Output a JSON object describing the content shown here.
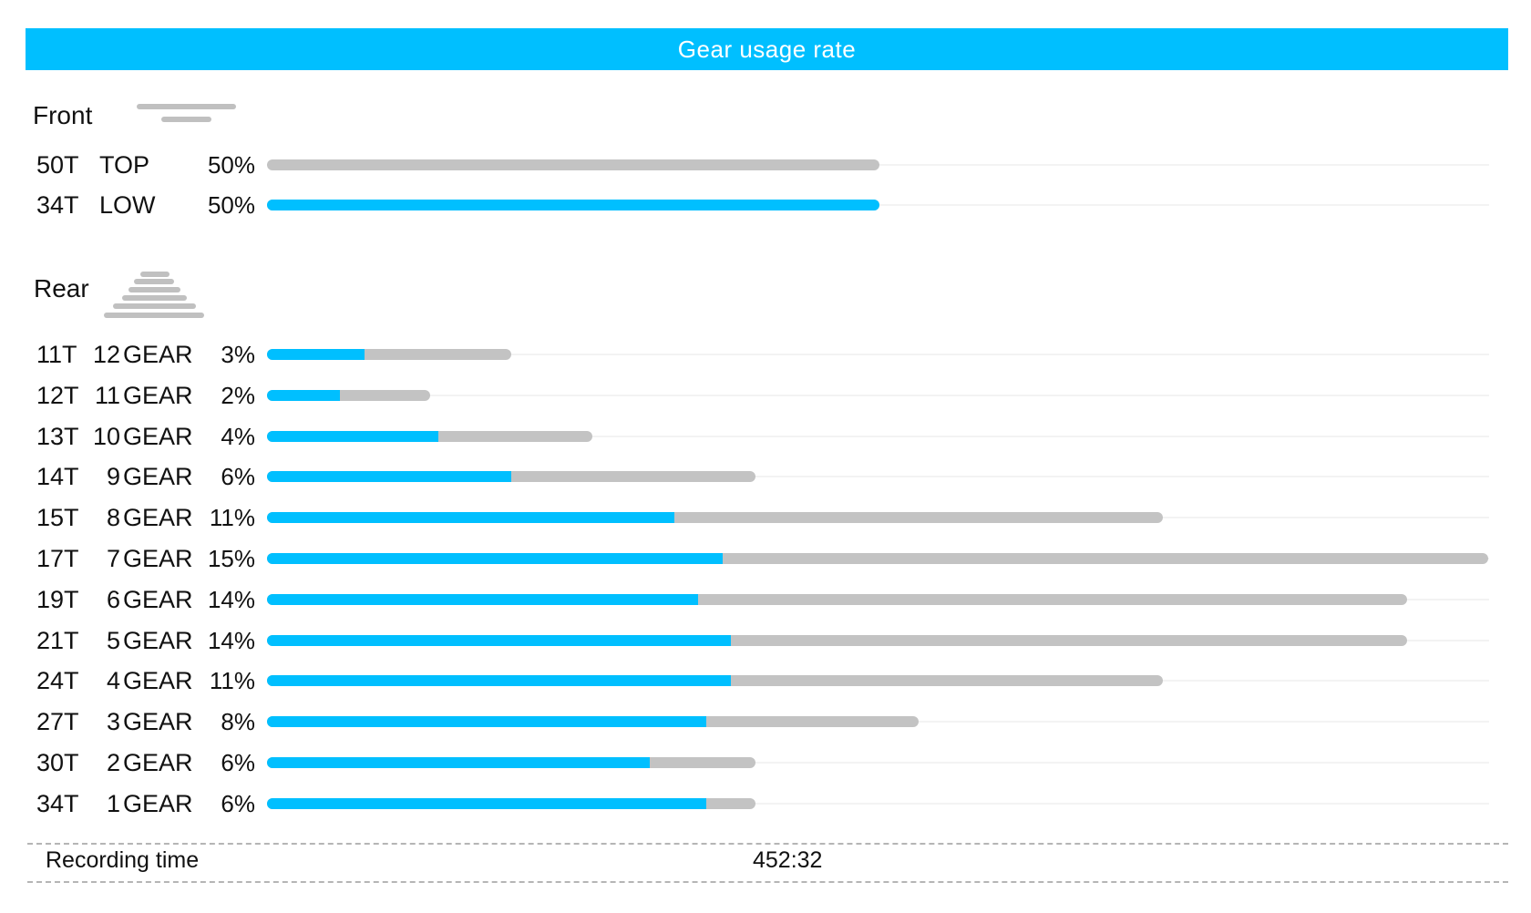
{
  "title": "Gear usage rate",
  "colors": {
    "accent": "#00BFFF",
    "bar_bg": "#C3C3C3",
    "header_text": "#FFFFFF"
  },
  "chart_data": {
    "type": "bar",
    "front": {
      "label": "Front",
      "rows": [
        {
          "teeth": "50T",
          "gear": "TOP",
          "percent": "50%",
          "total": 50,
          "active": 0
        },
        {
          "teeth": "34T",
          "gear": "LOW",
          "percent": "50%",
          "total": 50,
          "active": 50
        }
      ]
    },
    "rear": {
      "label": "Rear",
      "rows": [
        {
          "teeth": "11T",
          "gear_num": "12",
          "gear_word": "GEAR",
          "percent": "3%",
          "total": 3,
          "active": 1.2
        },
        {
          "teeth": "12T",
          "gear_num": "11",
          "gear_word": "GEAR",
          "percent": "2%",
          "total": 2,
          "active": 0.9
        },
        {
          "teeth": "13T",
          "gear_num": "10",
          "gear_word": "GEAR",
          "percent": "4%",
          "total": 4,
          "active": 2.1
        },
        {
          "teeth": "14T",
          "gear_num": "9",
          "gear_word": "GEAR",
          "percent": "6%",
          "total": 6,
          "active": 3.0
        },
        {
          "teeth": "15T",
          "gear_num": "8",
          "gear_word": "GEAR",
          "percent": "11%",
          "total": 11,
          "active": 5.0
        },
        {
          "teeth": "17T",
          "gear_num": "7",
          "gear_word": "GEAR",
          "percent": "15%",
          "total": 15,
          "active": 5.6
        },
        {
          "teeth": "19T",
          "gear_num": "6",
          "gear_word": "GEAR",
          "percent": "14%",
          "total": 14,
          "active": 5.3
        },
        {
          "teeth": "21T",
          "gear_num": "5",
          "gear_word": "GEAR",
          "percent": "14%",
          "total": 14,
          "active": 5.7
        },
        {
          "teeth": "24T",
          "gear_num": "4",
          "gear_word": "GEAR",
          "percent": "11%",
          "total": 11,
          "active": 5.7
        },
        {
          "teeth": "27T",
          "gear_num": "3",
          "gear_word": "GEAR",
          "percent": "8%",
          "total": 8,
          "active": 5.4
        },
        {
          "teeth": "30T",
          "gear_num": "2",
          "gear_word": "GEAR",
          "percent": "6%",
          "total": 6,
          "active": 4.7
        },
        {
          "teeth": "34T",
          "gear_num": "1",
          "gear_word": "GEAR",
          "percent": "6%",
          "total": 6,
          "active": 5.4
        }
      ]
    }
  },
  "footer": {
    "label": "Recording time",
    "value": "452:32"
  }
}
